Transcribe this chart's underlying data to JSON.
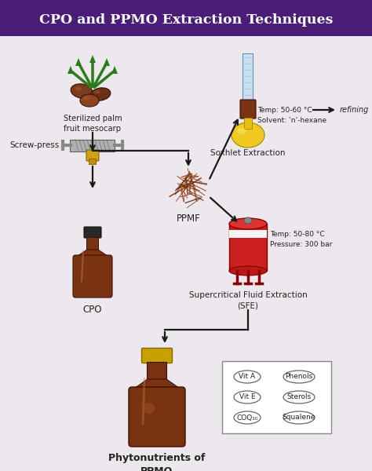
{
  "title": "CPO and PPMO Extraction Techniques",
  "title_bg": "#4a1d78",
  "title_color": "#ffffff",
  "bg_color": "#ede8ed",
  "labels": {
    "palm_fruit": "Sterilized palm\nfruit mesocarp",
    "screw_press": "Screw-press",
    "cpo": "CPO",
    "ppmf": "PPMF",
    "soxhlet": "Soxhlet Extraction",
    "soxhlet_params": "Temp: 50-60 °C\nSolvent: ’n’-hexane",
    "refining": "refining",
    "sfe": "Supercritical Fluid Extraction\n(SFE)",
    "sfe_params": "Temp: 50-80 °C\nPressure: 300 bar",
    "phyto": "Phytonutrients of\nPPMO",
    "vit_a": "Vit A",
    "vit_e": "Vit E",
    "coq": "COQ₁₀",
    "phenols": "Phenols",
    "sterols": "Sterols",
    "squalene": "Squalene"
  }
}
